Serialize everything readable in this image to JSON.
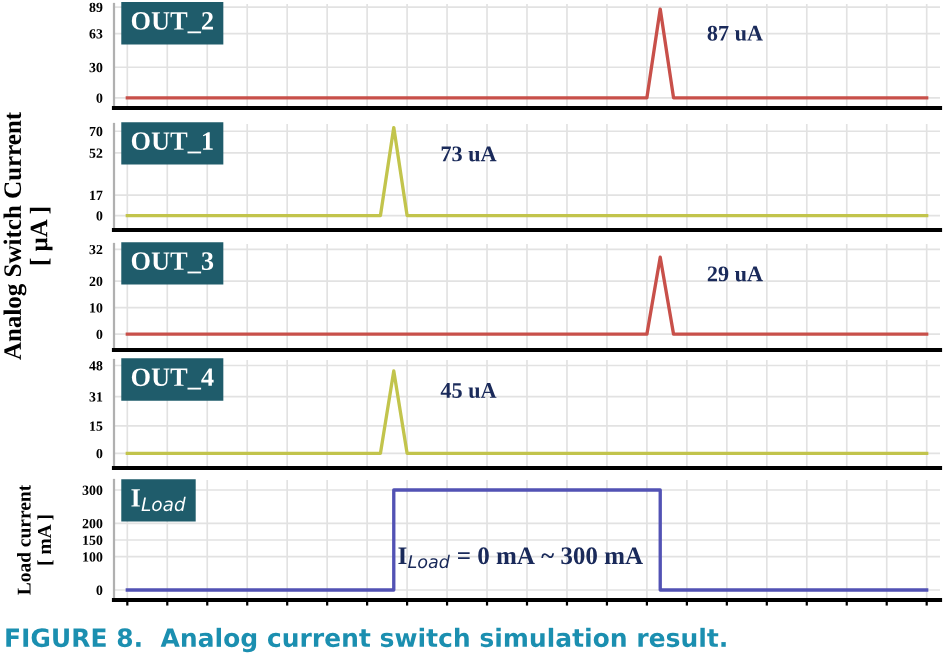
{
  "chart_data": [
    {
      "type": "line",
      "title": "OUT_2",
      "categories": [
        null,
        null,
        null,
        null,
        null,
        null,
        null,
        null,
        null,
        null,
        null,
        null,
        null,
        null,
        null,
        null,
        null,
        null,
        null,
        null,
        null,
        null,
        null,
        null,
        null,
        null,
        null,
        null,
        null,
        null,
        null,
        null,
        null,
        null,
        null,
        null,
        null,
        null,
        null,
        null,
        null,
        null,
        null,
        null,
        null,
        null,
        null,
        null,
        null,
        null,
        null,
        null,
        null,
        null,
        null,
        null,
        null,
        null,
        null,
        null,
        null
      ],
      "series": [
        {
          "color": "#c8504a",
          "values": [
            0,
            0,
            0,
            0,
            0,
            0,
            0,
            0,
            0,
            0,
            0,
            0,
            0,
            0,
            0,
            0,
            0,
            0,
            0,
            0,
            0,
            0,
            0,
            0,
            0,
            0,
            0,
            0,
            0,
            0,
            0,
            0,
            0,
            0,
            0,
            0,
            0,
            0,
            0,
            0,
            87,
            0,
            0,
            0,
            0,
            0,
            0,
            0,
            0,
            0,
            0,
            0,
            0,
            0,
            0,
            0,
            0,
            0,
            0,
            0,
            0
          ]
        }
      ],
      "annotations": [
        "87 uA"
      ],
      "ylim": [
        -10,
        92
      ],
      "yticks": [
        0,
        30,
        63,
        89
      ],
      "grid": true,
      "tick_labels": "y"
    },
    {
      "type": "line",
      "title": "OUT_1",
      "ylabel": "Analog Switch Current\n[ μA ]",
      "categories": [
        null,
        null,
        null,
        null,
        null,
        null,
        null,
        null,
        null,
        null,
        null,
        null,
        null,
        null,
        null,
        null,
        null,
        null,
        null,
        null,
        null,
        null,
        null,
        null,
        null,
        null,
        null,
        null,
        null,
        null,
        null,
        null,
        null,
        null,
        null,
        null,
        null,
        null,
        null,
        null,
        null,
        null,
        null,
        null,
        null,
        null,
        null,
        null,
        null,
        null,
        null,
        null,
        null,
        null,
        null,
        null,
        null,
        null,
        null,
        null,
        null
      ],
      "series": [
        {
          "color": "#c2c44c",
          "values": [
            0,
            0,
            0,
            0,
            0,
            0,
            0,
            0,
            0,
            0,
            0,
            0,
            0,
            0,
            0,
            0,
            0,
            0,
            0,
            0,
            73,
            0,
            0,
            0,
            0,
            0,
            0,
            0,
            0,
            0,
            0,
            0,
            0,
            0,
            0,
            0,
            0,
            0,
            0,
            0,
            0,
            0,
            0,
            0,
            0,
            0,
            0,
            0,
            0,
            0,
            0,
            0,
            0,
            0,
            0,
            0,
            0,
            0,
            0,
            0,
            0
          ]
        }
      ],
      "annotations": [
        "73 uA"
      ],
      "ylim": [
        -12,
        76
      ],
      "yticks": [
        0,
        17,
        52,
        70
      ],
      "grid": true,
      "tick_labels": "y"
    },
    {
      "type": "line",
      "title": "OUT_3",
      "categories": [
        null,
        null,
        null,
        null,
        null,
        null,
        null,
        null,
        null,
        null,
        null,
        null,
        null,
        null,
        null,
        null,
        null,
        null,
        null,
        null,
        null,
        null,
        null,
        null,
        null,
        null,
        null,
        null,
        null,
        null,
        null,
        null,
        null,
        null,
        null,
        null,
        null,
        null,
        null,
        null,
        null,
        null,
        null,
        null,
        null,
        null,
        null,
        null,
        null,
        null,
        null,
        null,
        null,
        null,
        null,
        null,
        null,
        null,
        null,
        null,
        null
      ],
      "series": [
        {
          "color": "#c8504a",
          "values": [
            0,
            0,
            0,
            0,
            0,
            0,
            0,
            0,
            0,
            0,
            0,
            0,
            0,
            0,
            0,
            0,
            0,
            0,
            0,
            0,
            0,
            0,
            0,
            0,
            0,
            0,
            0,
            0,
            0,
            0,
            0,
            0,
            0,
            0,
            0,
            0,
            0,
            0,
            0,
            0,
            29,
            0,
            0,
            0,
            0,
            0,
            0,
            0,
            0,
            0,
            0,
            0,
            0,
            0,
            0,
            0,
            0,
            0,
            0,
            0,
            0
          ]
        }
      ],
      "annotations": [
        "29 uA"
      ],
      "ylim": [
        -6,
        34
      ],
      "yticks": [
        0,
        10,
        20,
        32
      ],
      "grid": true,
      "tick_labels": "y"
    },
    {
      "type": "line",
      "title": "OUT_4",
      "categories": [
        null,
        null,
        null,
        null,
        null,
        null,
        null,
        null,
        null,
        null,
        null,
        null,
        null,
        null,
        null,
        null,
        null,
        null,
        null,
        null,
        null,
        null,
        null,
        null,
        null,
        null,
        null,
        null,
        null,
        null,
        null,
        null,
        null,
        null,
        null,
        null,
        null,
        null,
        null,
        null,
        null,
        null,
        null,
        null,
        null,
        null,
        null,
        null,
        null,
        null,
        null,
        null,
        null,
        null,
        null,
        null,
        null,
        null,
        null,
        null,
        null
      ],
      "series": [
        {
          "color": "#c2c44c",
          "values": [
            0,
            0,
            0,
            0,
            0,
            0,
            0,
            0,
            0,
            0,
            0,
            0,
            0,
            0,
            0,
            0,
            0,
            0,
            0,
            0,
            45,
            0,
            0,
            0,
            0,
            0,
            0,
            0,
            0,
            0,
            0,
            0,
            0,
            0,
            0,
            0,
            0,
            0,
            0,
            0,
            0,
            0,
            0,
            0,
            0,
            0,
            0,
            0,
            0,
            0,
            0,
            0,
            0,
            0,
            0,
            0,
            0,
            0,
            0,
            0,
            0
          ]
        }
      ],
      "annotations": [
        "45 uA"
      ],
      "ylim": [
        -8,
        51
      ],
      "yticks": [
        0,
        15,
        31,
        48
      ],
      "grid": true,
      "tick_labels": "y"
    },
    {
      "type": "step",
      "title": "I$_{Load}$",
      "ylabel": "Load current\n[ mA ]",
      "categories": [
        null,
        null,
        null,
        null,
        null,
        null,
        null,
        null,
        null,
        null,
        null,
        null,
        null,
        null,
        null,
        null,
        null,
        null,
        null,
        null,
        null,
        null,
        null,
        null,
        null,
        null,
        null,
        null,
        null,
        null,
        null,
        null,
        null,
        null,
        null,
        null,
        null,
        null,
        null,
        null,
        null,
        null,
        null,
        null,
        null,
        null,
        null,
        null,
        null,
        null,
        null,
        null,
        null,
        null,
        null,
        null,
        null,
        null,
        null,
        null,
        null
      ],
      "series": [
        {
          "color": "#5252b4",
          "values": [
            0,
            0,
            0,
            0,
            0,
            0,
            0,
            0,
            0,
            0,
            0,
            0,
            0,
            0,
            0,
            0,
            0,
            0,
            0,
            0,
            300,
            300,
            300,
            300,
            300,
            300,
            300,
            300,
            300,
            300,
            300,
            300,
            300,
            300,
            300,
            300,
            300,
            300,
            300,
            300,
            0,
            0,
            0,
            0,
            0,
            0,
            0,
            0,
            0,
            0,
            0,
            0,
            0,
            0,
            0,
            0,
            0,
            0,
            0,
            0,
            0
          ]
        }
      ],
      "annotations": [
        "I$_{Load}$ = 0 mA ~ 300 mA",
        "FIGURE 8.  Analog current switch simulation result."
      ],
      "ylim": [
        -30,
        330
      ],
      "yticks": [
        0,
        100,
        150,
        200,
        300
      ],
      "grid": true,
      "tick_labels": "y"
    }
  ]
}
